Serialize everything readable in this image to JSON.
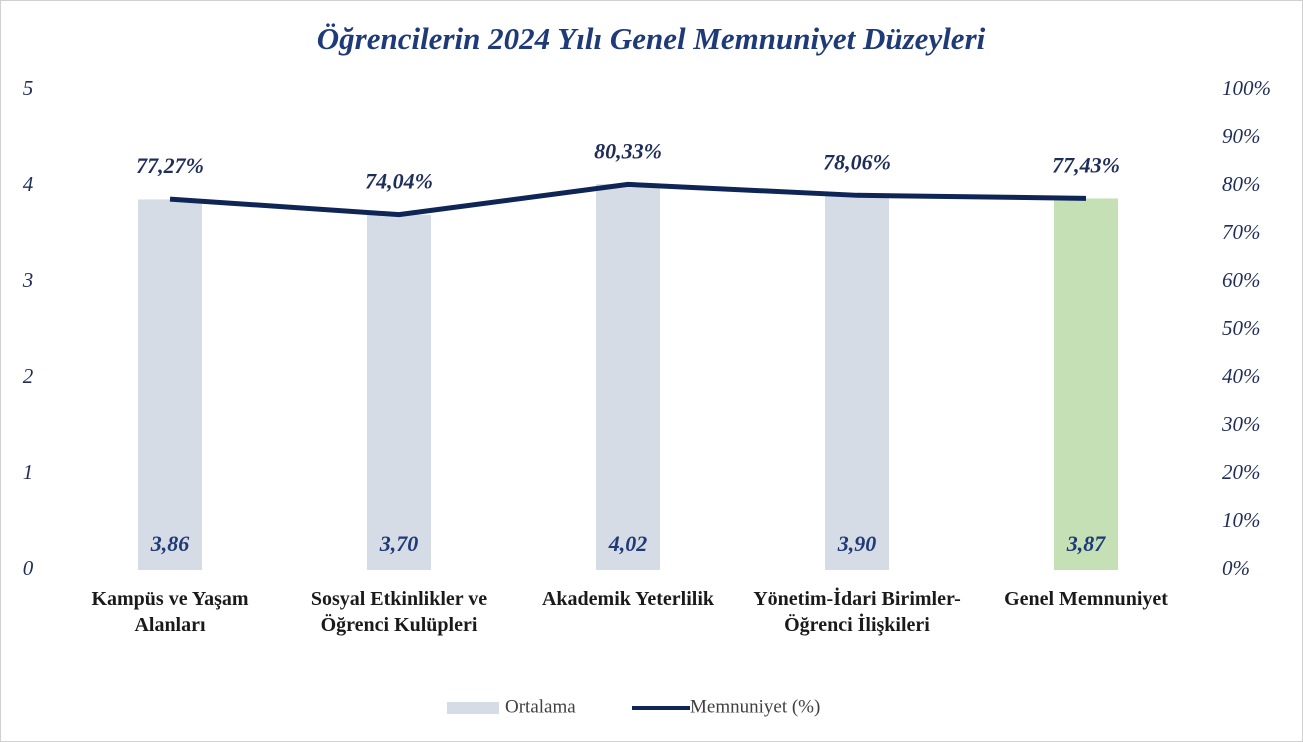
{
  "chart_data": {
    "type": "combo",
    "title": "Öğrencilerin 2024 Yılı Genel Memnuniyet Düzeyleri",
    "categories": [
      "Kampüs ve Yaşam Alanları",
      "Sosyal Etkinlikler ve Öğrenci Kulüpleri",
      "Akademik Yeterlilik",
      "Yönetim-İdari Birimler-Öğrenci İlişkileri",
      "Genel Memnuniyet"
    ],
    "series": [
      {
        "name": "Ortalama",
        "type": "bar",
        "color": "#d6dce5",
        "colors": [
          "#d6dce5",
          "#d6dce5",
          "#d6dce5",
          "#d6dce5",
          "#c5e0b4"
        ],
        "values": [
          3.86,
          3.7,
          4.02,
          3.9,
          3.87
        ],
        "value_labels": [
          "3,86",
          "3,70",
          "4,02",
          "3,90",
          "3,87"
        ]
      },
      {
        "name": "Memnuniyet (%)",
        "type": "line",
        "axis": "y2",
        "color": "#0e2556",
        "values": [
          77.27,
          74.04,
          80.33,
          78.06,
          77.43
        ],
        "value_labels": [
          "77,27%",
          "74,04%",
          "80,33%",
          "78,06%",
          "77,43%"
        ]
      }
    ],
    "ylim": [
      0,
      5
    ],
    "yticks": [
      0,
      1,
      2,
      3,
      4,
      5
    ],
    "y2lim": [
      0,
      100
    ],
    "y2ticks": [
      {
        "value": 0,
        "label": "0%"
      },
      {
        "value": 10,
        "label": "10%"
      },
      {
        "value": 20,
        "label": "20%"
      },
      {
        "value": 30,
        "label": "30%"
      },
      {
        "value": 40,
        "label": "40%"
      },
      {
        "value": 50,
        "label": "50%"
      },
      {
        "value": 60,
        "label": "60%"
      },
      {
        "value": 70,
        "label": "70%"
      },
      {
        "value": 80,
        "label": "80%"
      },
      {
        "value": 90,
        "label": "90%"
      },
      {
        "value": 100,
        "label": "100%"
      }
    ]
  }
}
